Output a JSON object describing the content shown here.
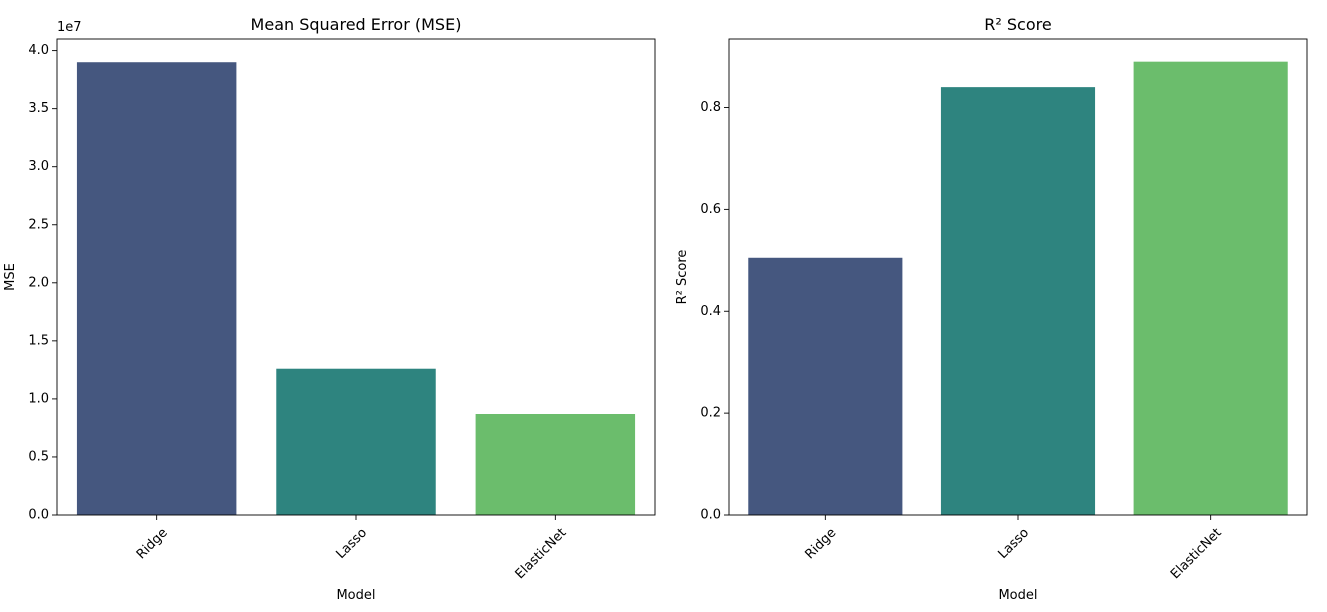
{
  "chart_data": [
    {
      "type": "bar",
      "title": "Mean Squared Error (MSE)",
      "xlabel": "Model",
      "ylabel": "MSE",
      "categories": [
        "Ridge",
        "Lasso",
        "ElasticNet"
      ],
      "values": [
        39000000,
        12600000,
        8700000
      ],
      "colors": [
        "#45577f",
        "#2e847f",
        "#6bbd6c"
      ],
      "ylim": [
        0,
        41000000
      ],
      "yticks": [
        0,
        5000000,
        10000000,
        15000000,
        20000000,
        25000000,
        30000000,
        35000000,
        40000000
      ],
      "ytick_labels": [
        "0.0",
        "0.5",
        "1.0",
        "1.5",
        "2.0",
        "2.5",
        "3.0",
        "3.5",
        "4.0"
      ],
      "y_offset_label": "1e7",
      "grid": false
    },
    {
      "type": "bar",
      "title": "R² Score",
      "xlabel": "Model",
      "ylabel": "R² Score",
      "categories": [
        "Ridge",
        "Lasso",
        "ElasticNet"
      ],
      "values": [
        0.505,
        0.84,
        0.89
      ],
      "colors": [
        "#45577f",
        "#2e847f",
        "#6bbd6c"
      ],
      "ylim": [
        0,
        0.9345
      ],
      "yticks": [
        0,
        0.2,
        0.4,
        0.6,
        0.8
      ],
      "ytick_labels": [
        "0.0",
        "0.2",
        "0.4",
        "0.6",
        "0.8"
      ],
      "y_offset_label": "",
      "grid": false
    }
  ]
}
